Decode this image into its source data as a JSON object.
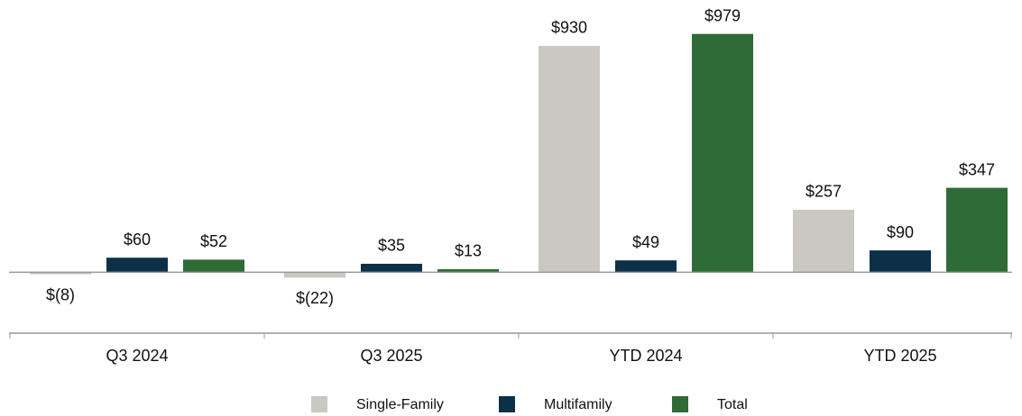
{
  "chart_data": {
    "type": "bar",
    "categories": [
      "Q3 2024",
      "Q3 2025",
      "YTD 2024",
      "YTD 2025"
    ],
    "series": [
      {
        "name": "Single-Family",
        "color": "#cbc8c2",
        "values": [
          -8,
          -22,
          930,
          257
        ],
        "value_labels": [
          "$(8)",
          "$(22)",
          "$930",
          "$257"
        ]
      },
      {
        "name": "Multifamily",
        "color": "#0d3049",
        "values": [
          60,
          35,
          49,
          90
        ],
        "value_labels": [
          "$60",
          "$35",
          "$49",
          "$90"
        ]
      },
      {
        "name": "Total",
        "color": "#2e6b36",
        "values": [
          52,
          13,
          979,
          347
        ],
        "value_labels": [
          "$52",
          "$13",
          "$979",
          "$347"
        ]
      }
    ],
    "ylim": [
      -250,
      1100
    ]
  }
}
